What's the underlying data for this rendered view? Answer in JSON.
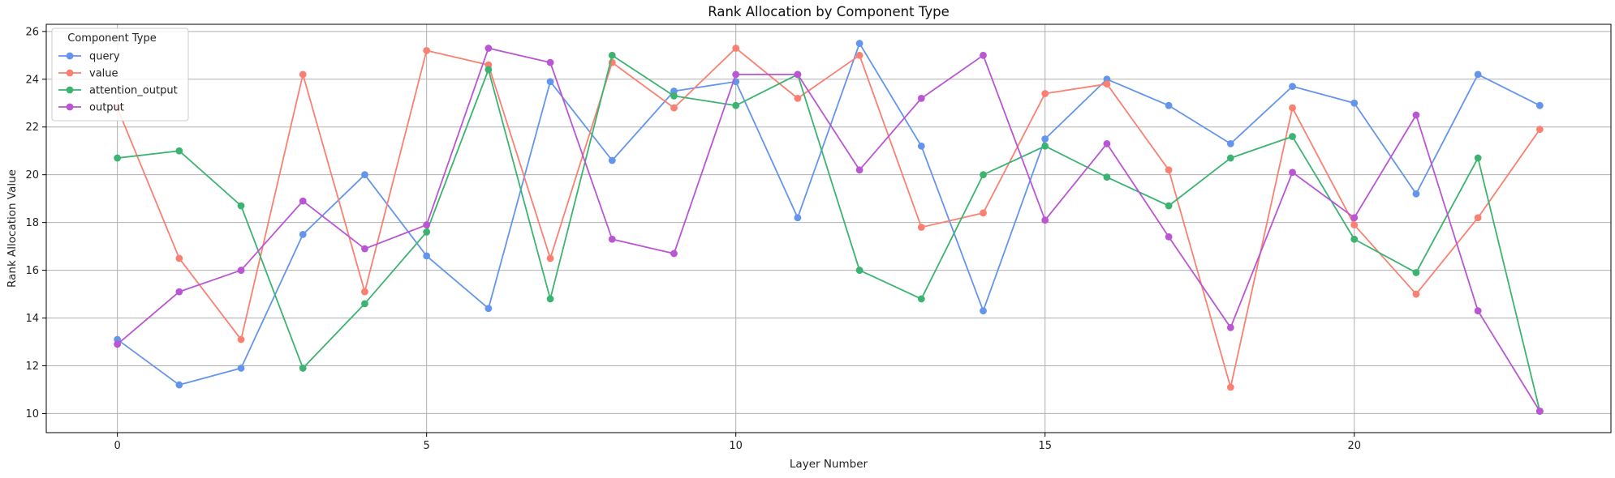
{
  "chart_data": {
    "type": "line",
    "title": "Rank Allocation by Component Type",
    "xlabel": "Layer Number",
    "ylabel": "Rank Allocation Value",
    "xlim": [
      -1.15,
      24.15
    ],
    "ylim": [
      9.2,
      26.3
    ],
    "xticks": [
      0,
      5,
      10,
      15,
      20
    ],
    "yticks": [
      10,
      12,
      14,
      16,
      18,
      20,
      22,
      24,
      26
    ],
    "grid": true,
    "legend": {
      "title": "Component Type",
      "placement": "top-left"
    },
    "x": [
      0,
      1,
      2,
      3,
      4,
      5,
      6,
      7,
      8,
      9,
      10,
      11,
      12,
      13,
      14,
      15,
      16,
      17,
      18,
      19,
      20,
      21,
      22,
      23
    ],
    "series": [
      {
        "name": "query",
        "color": "#6495ED",
        "values": [
          13.1,
          11.2,
          11.9,
          17.5,
          20.0,
          16.6,
          14.4,
          23.9,
          20.6,
          23.5,
          23.9,
          18.2,
          25.5,
          21.2,
          14.3,
          21.5,
          24.0,
          22.9,
          21.3,
          23.7,
          23.0,
          19.2,
          24.2,
          22.9
        ]
      },
      {
        "name": "value",
        "color": "#FA8072",
        "values": [
          22.8,
          16.5,
          13.1,
          24.2,
          15.1,
          25.2,
          24.6,
          16.5,
          24.7,
          22.8,
          25.3,
          23.2,
          25.0,
          17.8,
          18.4,
          23.4,
          23.8,
          20.2,
          11.1,
          22.8,
          17.9,
          15.0,
          18.2,
          21.9
        ]
      },
      {
        "name": "attention_output",
        "color": "#3CB371",
        "values": [
          20.7,
          21.0,
          18.7,
          11.9,
          14.6,
          17.6,
          24.4,
          14.8,
          25.0,
          23.3,
          22.9,
          24.2,
          16.0,
          14.8,
          20.0,
          21.2,
          19.9,
          18.7,
          20.7,
          21.6,
          17.3,
          15.9,
          20.7,
          10.1
        ]
      },
      {
        "name": "output",
        "color": "#BA55D3",
        "values": [
          12.9,
          15.1,
          16.0,
          18.9,
          16.9,
          17.9,
          25.3,
          24.7,
          17.3,
          16.7,
          24.2,
          24.2,
          20.2,
          23.2,
          25.0,
          18.1,
          21.3,
          17.4,
          13.6,
          20.1,
          18.2,
          22.5,
          14.3,
          10.1
        ]
      }
    ]
  }
}
